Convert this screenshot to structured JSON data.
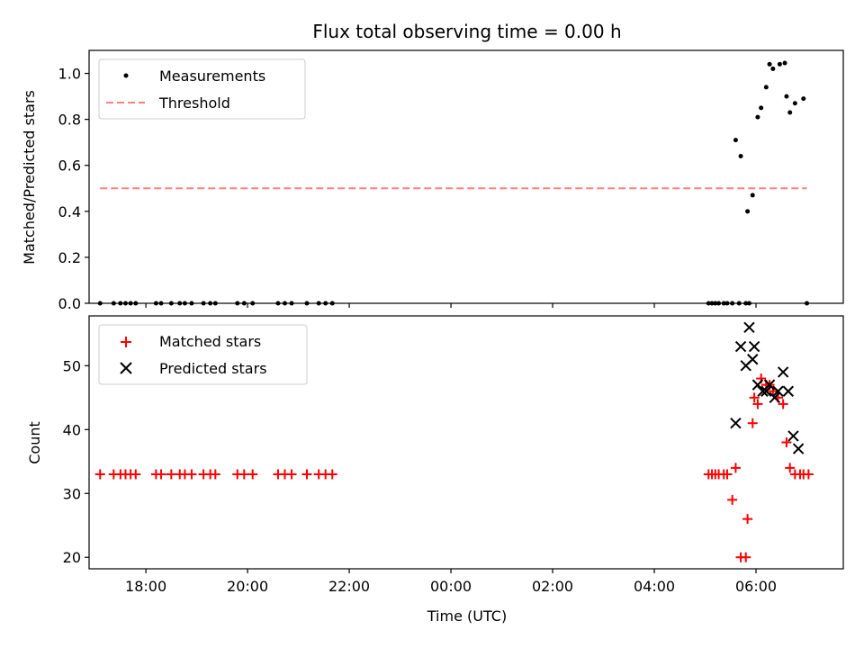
{
  "chart_data": [
    {
      "type": "scatter",
      "title": "Flux total observing time = 0.00 h",
      "xlabel": "",
      "ylabel": "Matched/Predicted stars",
      "xlim": [
        "16:53",
        "07:43"
      ],
      "ylim": [
        0,
        1.1
      ],
      "yticks": [
        "0.0",
        "0.2",
        "0.4",
        "0.6",
        "0.8",
        "1.0"
      ],
      "grid": false,
      "legend_position": "top-left",
      "series": [
        {
          "name": "Measurements",
          "color": "#000000",
          "marker": "dot",
          "x": [
            "17:06",
            "17:22",
            "17:30",
            "17:36",
            "17:42",
            "17:48",
            "18:12",
            "18:18",
            "18:30",
            "18:40",
            "18:46",
            "18:54",
            "19:08",
            "19:16",
            "19:22",
            "19:48",
            "19:56",
            "20:06",
            "20:36",
            "20:44",
            "20:52",
            "21:10",
            "21:24",
            "21:32",
            "21:40",
            "05:04",
            "05:08",
            "05:12",
            "05:16",
            "05:22",
            "05:26",
            "05:32",
            "05:40",
            "05:48",
            "05:52",
            "05:36",
            "05:42",
            "05:50",
            "05:56",
            "06:02",
            "06:06",
            "06:12",
            "06:16",
            "06:20",
            "06:28",
            "06:34",
            "06:36",
            "06:40",
            "06:46",
            "06:56",
            "07:00"
          ],
          "y": [
            0,
            0,
            0,
            0,
            0,
            0,
            0,
            0,
            0,
            0,
            0,
            0,
            0,
            0,
            0,
            0,
            0,
            0,
            0,
            0,
            0,
            0,
            0,
            0,
            0,
            0,
            0,
            0,
            0,
            0,
            0,
            0,
            0,
            0,
            0,
            0.71,
            0.64,
            0.4,
            0.47,
            0.81,
            0.85,
            0.94,
            1.04,
            1.02,
            1.04,
            1.045,
            0.9,
            0.83,
            0.87,
            0.89,
            0
          ]
        },
        {
          "name": "Threshold",
          "color": "#ff7f7f",
          "line": "dashed",
          "x": [
            "17:06",
            "07:00"
          ],
          "y": [
            0.5,
            0.5
          ]
        }
      ]
    },
    {
      "type": "scatter",
      "title": "",
      "xlabel": "Time (UTC)",
      "ylabel": "Count",
      "xlim": [
        "16:53",
        "07:43"
      ],
      "ylim": [
        18.2,
        57.8
      ],
      "xticks": [
        "18:00",
        "20:00",
        "22:00",
        "00:00",
        "02:00",
        "04:00",
        "06:00"
      ],
      "yticks": [
        "20",
        "30",
        "40",
        "50"
      ],
      "grid": false,
      "legend_position": "top-left",
      "series": [
        {
          "name": "Matched stars",
          "color": "#ff0000",
          "marker": "plus",
          "x": [
            "17:06",
            "17:22",
            "17:30",
            "17:36",
            "17:42",
            "17:48",
            "18:12",
            "18:18",
            "18:30",
            "18:40",
            "18:46",
            "18:54",
            "19:08",
            "19:16",
            "19:22",
            "19:48",
            "19:56",
            "20:06",
            "20:36",
            "20:44",
            "20:52",
            "21:10",
            "21:24",
            "21:32",
            "21:40",
            "05:04",
            "05:08",
            "05:12",
            "05:16",
            "05:22",
            "05:26",
            "05:32",
            "05:36",
            "05:42",
            "05:48",
            "05:50",
            "05:56",
            "05:58",
            "06:02",
            "06:06",
            "06:12",
            "06:16",
            "06:20",
            "06:26",
            "06:32",
            "06:36",
            "06:40",
            "06:46",
            "06:52",
            "06:56",
            "07:02"
          ],
          "y": [
            33,
            33,
            33,
            33,
            33,
            33,
            33,
            33,
            33,
            33,
            33,
            33,
            33,
            33,
            33,
            33,
            33,
            33,
            33,
            33,
            33,
            33,
            33,
            33,
            33,
            33,
            33,
            33,
            33,
            33,
            33,
            29,
            34,
            20,
            20,
            26,
            41,
            45,
            44,
            48,
            47,
            47,
            46,
            45,
            44,
            38,
            34,
            33,
            33,
            33,
            33
          ]
        },
        {
          "name": "Predicted stars",
          "color": "#000000",
          "marker": "x",
          "x": [
            "05:36",
            "05:42",
            "05:48",
            "05:52",
            "05:56",
            "05:58",
            "06:02",
            "06:08",
            "06:12",
            "06:16",
            "06:22",
            "06:26",
            "06:32",
            "06:38",
            "06:44",
            "06:50"
          ],
          "y": [
            41,
            53,
            50,
            56,
            51,
            53,
            47,
            46,
            46,
            47,
            45,
            46,
            49,
            46,
            39,
            37
          ]
        }
      ]
    }
  ]
}
